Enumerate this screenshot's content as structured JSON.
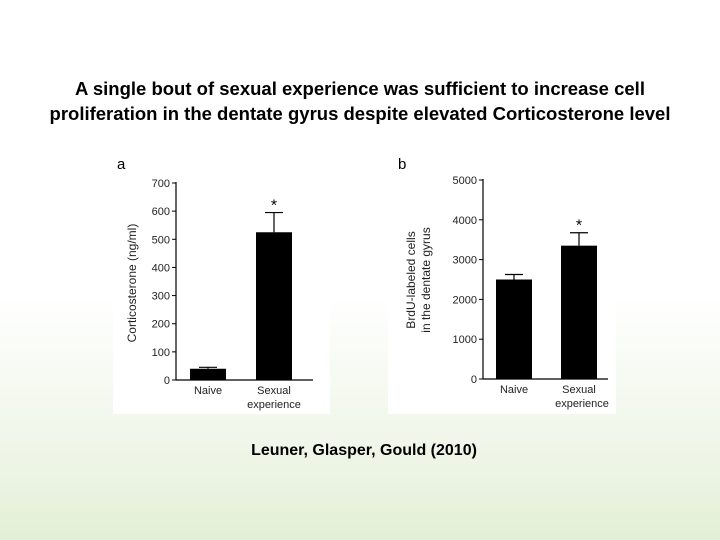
{
  "slide": {
    "title_line1": "A single bout of sexual experience was sufficient to increase cell",
    "title_line2": "proliferation in the dentate gyrus despite elevated Corticosterone level",
    "citation": "Leuner, Glasper, Gould  (2010)"
  },
  "chart_data": [
    {
      "type": "bar",
      "panel_label": "a",
      "title": "",
      "xlabel": "",
      "ylabel": "Corticosterone (ng/ml)",
      "ylim": [
        0,
        700
      ],
      "yticks": [
        0,
        100,
        200,
        300,
        400,
        500,
        600,
        700
      ],
      "categories": [
        "Naive",
        "Sexual experience"
      ],
      "category_lines": [
        [
          "Naive"
        ],
        [
          "Sexual",
          "experience"
        ]
      ],
      "values": [
        40,
        525
      ],
      "error": [
        5,
        70
      ],
      "annotations": [
        "",
        "*"
      ],
      "bar_color": "#000000"
    },
    {
      "type": "bar",
      "panel_label": "b",
      "title": "",
      "xlabel": "",
      "ylabel_lines": [
        "BrdU-labeled cells",
        "in the dentate gyrus"
      ],
      "ylim": [
        0,
        5000
      ],
      "yticks": [
        0,
        1000,
        2000,
        3000,
        4000,
        5000
      ],
      "categories": [
        "Naive",
        "Sexual experience"
      ],
      "category_lines": [
        [
          "Naive"
        ],
        [
          "Sexual",
          "experience"
        ]
      ],
      "values": [
        2500,
        3350
      ],
      "error": [
        125,
        325
      ],
      "annotations": [
        "",
        "*"
      ],
      "bar_color": "#000000"
    }
  ]
}
